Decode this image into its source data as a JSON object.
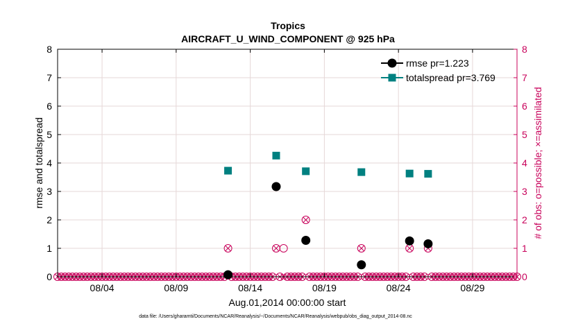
{
  "chart_data": {
    "type": "scatter",
    "title": "Tropics",
    "subtitle": "AIRCRAFT_U_WIND_COMPONENT @ 925 hPa",
    "xlabel": "Aug.01,2014 00:00:00 start",
    "ylabel": "rmse and totalspread",
    "y2label": "# of obs: o=possible; ×=assimilated",
    "footer": "data file: /Users/gharamti/Documents/NCAR/Reanalysis/~/Documents/NCAR/Reanalysis/webpub/obs_diag_output_2014-08.nc",
    "xlim": [
      0,
      31
    ],
    "ylim": [
      0,
      8
    ],
    "y2lim": [
      0,
      8
    ],
    "x_ticks": [
      3,
      8,
      13,
      18,
      23,
      28
    ],
    "x_tick_labels": [
      "08/04",
      "08/09",
      "08/14",
      "08/19",
      "08/24",
      "08/29"
    ],
    "y_ticks": [
      0,
      1,
      2,
      3,
      4,
      5,
      6,
      7,
      8
    ],
    "y_tick_labels": [
      "0",
      "1",
      "2",
      "3",
      "4",
      "5",
      "6",
      "7",
      "8"
    ],
    "y2_tick_labels": [
      "0",
      "1",
      "2",
      "3",
      "4",
      "5",
      "6",
      "7",
      "8"
    ],
    "grid": true,
    "legend_position": "top-right",
    "colors": {
      "rmse": "#000000",
      "totalspread": "#008080",
      "obs": "#c8005a",
      "grid": "#e6d7d7"
    },
    "series": [
      {
        "name": "rmse pr=1.223",
        "marker": "circle",
        "x": [
          11.5,
          14.75,
          16.75,
          20.5,
          23.75,
          25.0
        ],
        "values": [
          0.07,
          3.17,
          1.28,
          0.42,
          1.26,
          1.16
        ]
      },
      {
        "name": "totalspread pr=3.769",
        "marker": "square",
        "x": [
          11.5,
          14.75,
          16.75,
          20.5,
          23.75,
          25.0
        ],
        "values": [
          3.73,
          4.26,
          3.71,
          3.68,
          3.63,
          3.62
        ]
      }
    ],
    "obs_nonzero": {
      "x": [
        11.5,
        14.75,
        15.25,
        16.75,
        20.5,
        23.75,
        25.0
      ],
      "possible": [
        1,
        1,
        1,
        2,
        1,
        1,
        1
      ],
      "assimilated": [
        1,
        1,
        0,
        2,
        1,
        1,
        1
      ]
    },
    "obs_step": 0.25
  }
}
